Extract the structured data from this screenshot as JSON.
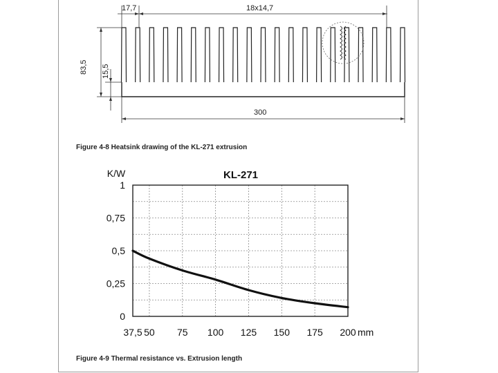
{
  "drawing": {
    "dim_fin_offset": "17,7",
    "dim_fin_pitch": "18x14,7",
    "dim_height": "83,5",
    "dim_base": "15,5",
    "dim_width": "300",
    "fin_count": 21
  },
  "captions": {
    "figure_4_8": "Figure 4-8 Heatsink drawing of the KL-271 extrusion",
    "figure_4_9": "Figure 4-9 Thermal resistance vs. Extrusion length"
  },
  "chart_data": {
    "type": "line",
    "title": "KL-271",
    "ylabel": "K/W",
    "xlabel": "mm",
    "x_ticks": [
      37.5,
      50,
      75,
      100,
      125,
      150,
      175,
      200
    ],
    "x_tick_labels": [
      "37,5",
      "50",
      "75",
      "100",
      "125",
      "150",
      "175",
      "200"
    ],
    "y_ticks": [
      0,
      0.25,
      0.5,
      0.75,
      1
    ],
    "y_tick_labels": [
      "0",
      "0,25",
      "0,5",
      "0,75",
      "1"
    ],
    "xlim": [
      37.5,
      200
    ],
    "ylim": [
      0,
      1
    ],
    "grid": true,
    "series": [
      {
        "values": [
          {
            "x": 37.5,
            "y": 0.5
          },
          {
            "x": 50,
            "y": 0.44
          },
          {
            "x": 75,
            "y": 0.35
          },
          {
            "x": 100,
            "y": 0.28
          },
          {
            "x": 125,
            "y": 0.2
          },
          {
            "x": 150,
            "y": 0.14
          },
          {
            "x": 175,
            "y": 0.1
          },
          {
            "x": 200,
            "y": 0.07
          }
        ]
      }
    ]
  }
}
